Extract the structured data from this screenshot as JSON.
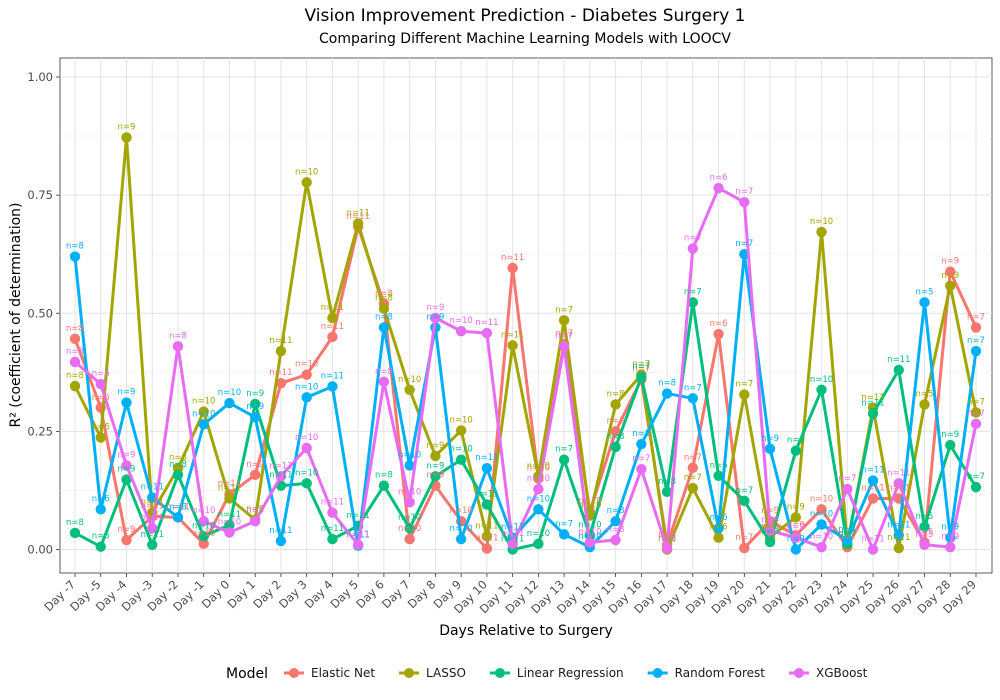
{
  "chart_data": {
    "type": "line",
    "title": "Vision Improvement Prediction - Diabetes Surgery 1",
    "subtitle": "Comparing Different Machine Learning Models with LOOCV",
    "xlabel": "Days Relative to Surgery",
    "ylabel": "R² (coefficient of determination)",
    "ylim": [
      0,
      1
    ],
    "yticks": [
      "0.00",
      "0.25",
      "0.50",
      "0.75",
      "1.00"
    ],
    "grid": true,
    "legend_title": "Model",
    "legend_position": "bottom",
    "categories": [
      "Day -7",
      "Day -5",
      "Day -4",
      "Day -3",
      "Day -2",
      "Day -1",
      "Day 0",
      "Day 1",
      "Day 2",
      "Day 3",
      "Day 4",
      "Day 5",
      "Day 6",
      "Day 7",
      "Day 8",
      "Day 9",
      "Day 10",
      "Day 11",
      "Day 12",
      "Day 13",
      "Day 14",
      "Day 15",
      "Day 16",
      "Day 17",
      "Day 18",
      "Day 19",
      "Day 20",
      "Day 21",
      "Day 22",
      "Day 23",
      "Day 24",
      "Day 25",
      "Day 26",
      "Day 27",
      "Day 28",
      "Day 29"
    ],
    "series": [
      {
        "name": "Elastic Net",
        "color": "#F8766D",
        "values": [
          0.446,
          0.3,
          0.02,
          0.07,
          0.068,
          0.012,
          0.117,
          0.158,
          0.352,
          0.37,
          0.45,
          0.683,
          0.52,
          0.022,
          0.135,
          0.06,
          0.002,
          0.596,
          0.15,
          0.435,
          0.08,
          0.25,
          0.36,
          0.01,
          0.173,
          0.456,
          0.003,
          0.06,
          0.03,
          0.085,
          0.005,
          0.108,
          0.108,
          0.015,
          0.588,
          0.47
        ],
        "n": [
          "n=8",
          "n=6",
          "n=9",
          "n=11",
          "n=11",
          "n=10",
          "n=11",
          "n=9",
          "n=11",
          "n=10",
          "n=11",
          "n=11",
          "n=8",
          "n=10",
          "n=9",
          "n=10",
          "n=11",
          "n=11",
          "n=10",
          "n=7",
          "n=10",
          "n=8",
          "n=7",
          "n=8",
          "n=7",
          "n=6",
          "n=7",
          "n=9",
          "n=9",
          "n=10",
          "n=7",
          "n=11",
          "n=11",
          "n=5",
          "n=9",
          "n=7"
        ]
      },
      {
        "name": "LASSO",
        "color": "#A3A500",
        "values": [
          0.346,
          0.237,
          0.872,
          0.078,
          0.172,
          0.292,
          0.108,
          0.063,
          0.42,
          0.777,
          0.49,
          0.69,
          0.51,
          0.338,
          0.198,
          0.252,
          0.028,
          0.432,
          0.155,
          0.485,
          0.072,
          0.307,
          0.37,
          0.0,
          0.13,
          0.025,
          0.328,
          0.026,
          0.068,
          0.672,
          0.01,
          0.3,
          0.003,
          0.307,
          0.558,
          0.29
        ],
        "n": [
          "n=8",
          "n=6",
          "n=9",
          "n=11",
          "n=8",
          "n=10",
          "n=11",
          "n=9",
          "n=11",
          "n=10",
          "n=11",
          "n=11",
          "n=8",
          "n=10",
          "n=9",
          "n=10",
          "n=11",
          "n=11",
          "n=10",
          "n=7",
          "n=10",
          "n=8",
          "n=7",
          "n=8",
          "n=7",
          "n=6",
          "n=7",
          "n=9",
          "n=9",
          "n=10",
          "n=7",
          "n=11",
          "n=11",
          "n=5",
          "n=9",
          "n=7"
        ]
      },
      {
        "name": "Linear Regression",
        "color": "#00BF7D",
        "values": [
          0.035,
          0.006,
          0.148,
          0.01,
          0.158,
          0.028,
          0.052,
          0.308,
          0.135,
          0.14,
          0.022,
          0.05,
          0.135,
          0.045,
          0.155,
          0.19,
          0.095,
          0.0,
          0.012,
          0.19,
          0.03,
          0.217,
          0.365,
          0.122,
          0.523,
          0.156,
          0.103,
          0.016,
          0.209,
          0.338,
          0.012,
          0.288,
          0.38,
          0.048,
          0.221,
          0.132
        ],
        "n": [
          "n=8",
          "n=6",
          "n=9",
          "n=11",
          "n=8",
          "n=10",
          "n=11",
          "n=9",
          "n=11",
          "n=10",
          "n=11",
          "n=11",
          "n=8",
          "n=10",
          "n=9",
          "n=10",
          "n=11",
          "n=11",
          "n=10",
          "n=7",
          "n=10",
          "n=8",
          "n=7",
          "n=8",
          "n=7",
          "n=6",
          "n=7",
          "n=9",
          "n=9",
          "n=10",
          "n=7",
          "n=11",
          "n=11",
          "n=5",
          "n=9",
          "n=7"
        ]
      },
      {
        "name": "Random Forest",
        "color": "#00B0F6",
        "values": [
          0.62,
          0.085,
          0.311,
          0.11,
          0.068,
          0.265,
          0.31,
          0.28,
          0.018,
          0.322,
          0.345,
          0.008,
          0.47,
          0.178,
          0.47,
          0.022,
          0.172,
          0.025,
          0.085,
          0.032,
          0.005,
          0.06,
          0.223,
          0.33,
          0.32,
          0.045,
          0.625,
          0.213,
          0.0,
          0.053,
          0.02,
          0.146,
          0.03,
          0.523,
          0.025,
          0.42
        ],
        "n": [
          "n=8",
          "n=6",
          "n=9",
          "n=11",
          "n=8",
          "n=10",
          "n=10",
          "n=9",
          "n=11",
          "n=10",
          "n=11",
          "n=11",
          "n=8",
          "n=10",
          "n=9",
          "n=10",
          "n=11",
          "n=11",
          "n=10",
          "n=7",
          "n=10",
          "n=8",
          "n=8",
          "n=8",
          "n=7",
          "n=6",
          "n=7",
          "n=9",
          "n=9",
          "n=10",
          "n=7",
          "n=11",
          "n=11",
          "n=5",
          "n=9",
          "n=7"
        ]
      },
      {
        "name": "XGBoost",
        "color": "#E76BF3",
        "values": [
          0.397,
          0.35,
          0.178,
          0.045,
          0.43,
          0.06,
          0.036,
          0.06,
          0.155,
          0.215,
          0.078,
          0.01,
          0.355,
          0.1,
          0.49,
          0.462,
          0.458,
          0.012,
          0.128,
          0.43,
          0.015,
          0.02,
          0.17,
          0.002,
          0.637,
          0.765,
          0.735,
          0.04,
          0.025,
          0.005,
          0.128,
          0.0,
          0.14,
          0.01,
          0.005,
          0.266
        ],
        "n": [
          "n=8",
          "n=6",
          "n=9",
          "n=11",
          "n=8",
          "n=10",
          "n=10",
          "n=9",
          "n=11",
          "n=10",
          "n=11",
          "n=11",
          "n=8",
          "n=10",
          "n=9",
          "n=10",
          "n=11",
          "n=11",
          "n=10",
          "n=7",
          "n=10",
          "n=8",
          "n=7",
          "n=8",
          "n=7",
          "n=6",
          "n=7",
          "n=9",
          "n=9",
          "n=10",
          "n=7",
          "n=11",
          "n=11",
          "n=5",
          "n=9",
          "n=7"
        ]
      }
    ]
  }
}
